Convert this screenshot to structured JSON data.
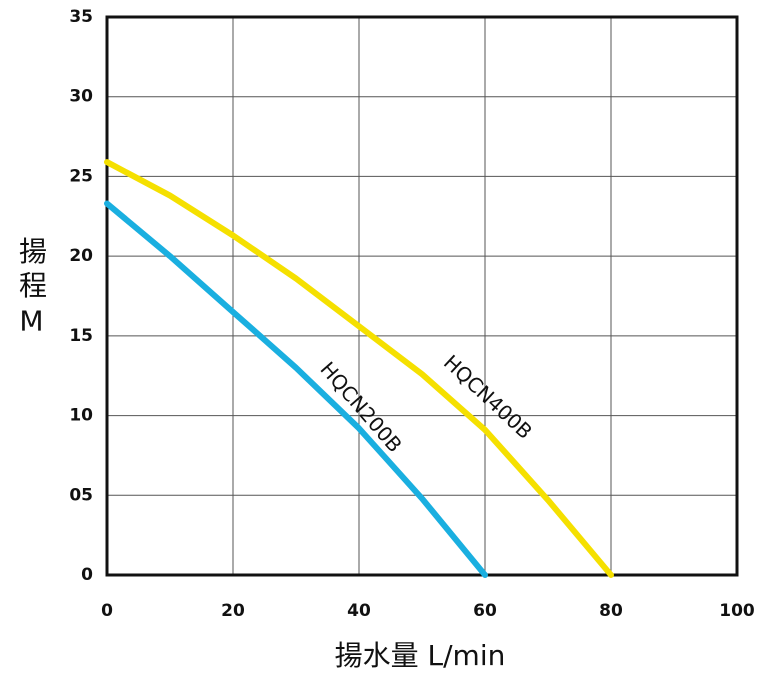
{
  "chart_data": {
    "type": "line",
    "y_label": "揚程M",
    "x_label": "揚水量 L/min",
    "series": [
      {
        "name": "HQCN200B",
        "color": "#1aafe0",
        "x": [
          0,
          10,
          20,
          30,
          40,
          50,
          60
        ],
        "values": [
          23.3,
          20.0,
          16.5,
          13.0,
          9.2,
          4.8,
          0
        ]
      },
      {
        "name": "HQCN400B",
        "color": "#f5e000",
        "x": [
          0,
          10,
          20,
          30,
          40,
          50,
          60,
          70,
          80
        ],
        "values": [
          25.9,
          23.8,
          21.3,
          18.6,
          15.6,
          12.6,
          9.1,
          4.7,
          0
        ]
      }
    ],
    "xlim": [
      0,
      100
    ],
    "xticks": [
      0,
      20,
      40,
      60,
      80,
      100
    ],
    "ylim": [
      0,
      35
    ],
    "yticks": [
      0,
      {
        "value": 5,
        "label": "05"
      },
      10,
      15,
      20,
      25,
      30,
      35
    ],
    "grid": true
  }
}
